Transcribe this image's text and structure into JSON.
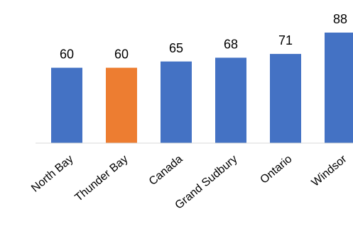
{
  "chart_data": {
    "type": "bar",
    "title": "",
    "xlabel": "",
    "ylabel": "",
    "categories": [
      "North Bay",
      "Thunder Bay",
      "Canada",
      "Grand Sudbury",
      "Ontario",
      "Windsor"
    ],
    "values": [
      60,
      60,
      65,
      68,
      71,
      88
    ],
    "data_labels": [
      "60",
      "60",
      "65",
      "68",
      "71",
      "88"
    ],
    "ylim": [
      0,
      88
    ],
    "grid": false,
    "legend": "none",
    "bar_colors": [
      "#4472c4",
      "#ed7d31",
      "#4472c4",
      "#4472c4",
      "#4472c4",
      "#4472c4"
    ],
    "highlight_category": "Thunder Bay"
  }
}
